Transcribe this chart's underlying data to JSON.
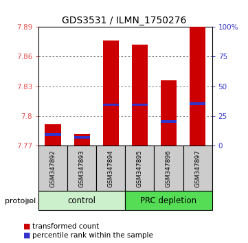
{
  "title": "GDS3531 / ILMN_1750276",
  "samples": [
    "GSM347892",
    "GSM347893",
    "GSM347894",
    "GSM347895",
    "GSM347896",
    "GSM347897"
  ],
  "groups": [
    "control",
    "control",
    "control",
    "PRC depletion",
    "PRC depletion",
    "PRC depletion"
  ],
  "bar_bottom": 7.77,
  "red_values": [
    7.792,
    7.782,
    7.876,
    7.872,
    7.836,
    7.893
  ],
  "blue_values": [
    7.7815,
    7.7785,
    7.8115,
    7.8115,
    7.7945,
    7.8125
  ],
  "ylim_left": [
    7.77,
    7.89
  ],
  "ylim_right": [
    0,
    100
  ],
  "yticks_left": [
    7.77,
    7.8,
    7.83,
    7.86,
    7.89
  ],
  "yticks_right": [
    0,
    25,
    50,
    75,
    100
  ],
  "ytick_labels_left": [
    "7.77",
    "7.8",
    "7.83",
    "7.86",
    "7.89"
  ],
  "ytick_labels_right": [
    "0",
    "25",
    "50",
    "75",
    "100%"
  ],
  "left_tick_color": "#e05050",
  "right_tick_color": "#3333cc",
  "bar_width": 0.55,
  "red_color": "#cc0000",
  "blue_color": "#3333cc",
  "blue_bar_height": 0.0025,
  "control_bg": "#ccf0cc",
  "prc_bg": "#55dd55",
  "sample_bg": "#cccccc",
  "grid_color": "#555555",
  "control_label": "control",
  "prc_label": "PRC depletion",
  "legend_red": "transformed count",
  "legend_blue": "percentile rank within the sample",
  "protocol_label": "protocol"
}
